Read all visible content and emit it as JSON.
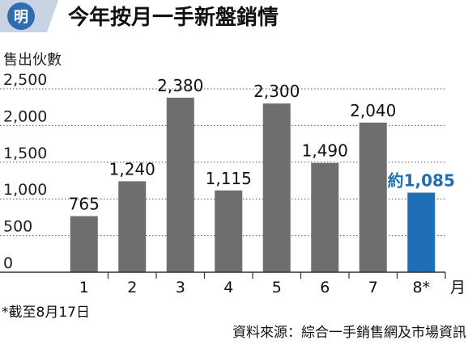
{
  "header": {
    "logo_text": "明",
    "title": "今年按月一手新盤銷情"
  },
  "chart_data": {
    "type": "bar",
    "title": "今年按月一手新盤銷情",
    "ylabel": "售出伙數",
    "xlabel": "月",
    "ylim": [
      0,
      2500
    ],
    "yticks": [
      "0",
      "500",
      "1,000",
      "1,500",
      "2,000",
      "2,500"
    ],
    "grid": true,
    "categories": [
      "1",
      "2",
      "3",
      "4",
      "5",
      "6",
      "7",
      "8*"
    ],
    "values": [
      765,
      1240,
      2380,
      1115,
      2300,
      1490,
      2040,
      1085
    ],
    "value_labels": [
      "765",
      "1,240",
      "2,380",
      "1,115",
      "2,300",
      "1,490",
      "2,040",
      "約1,085"
    ],
    "colors": {
      "bar": "#6e6e6e",
      "highlight_bar": "#1e6fb5",
      "highlight_label": "#1e6fb5",
      "header_bg": "#c8d4e4",
      "logo_bg": "#2f6db3"
    },
    "highlight_index": 7
  },
  "footer": {
    "note": "*截至8月17日",
    "source": "資料來源：綜合一手銷售網及市場資訊"
  }
}
